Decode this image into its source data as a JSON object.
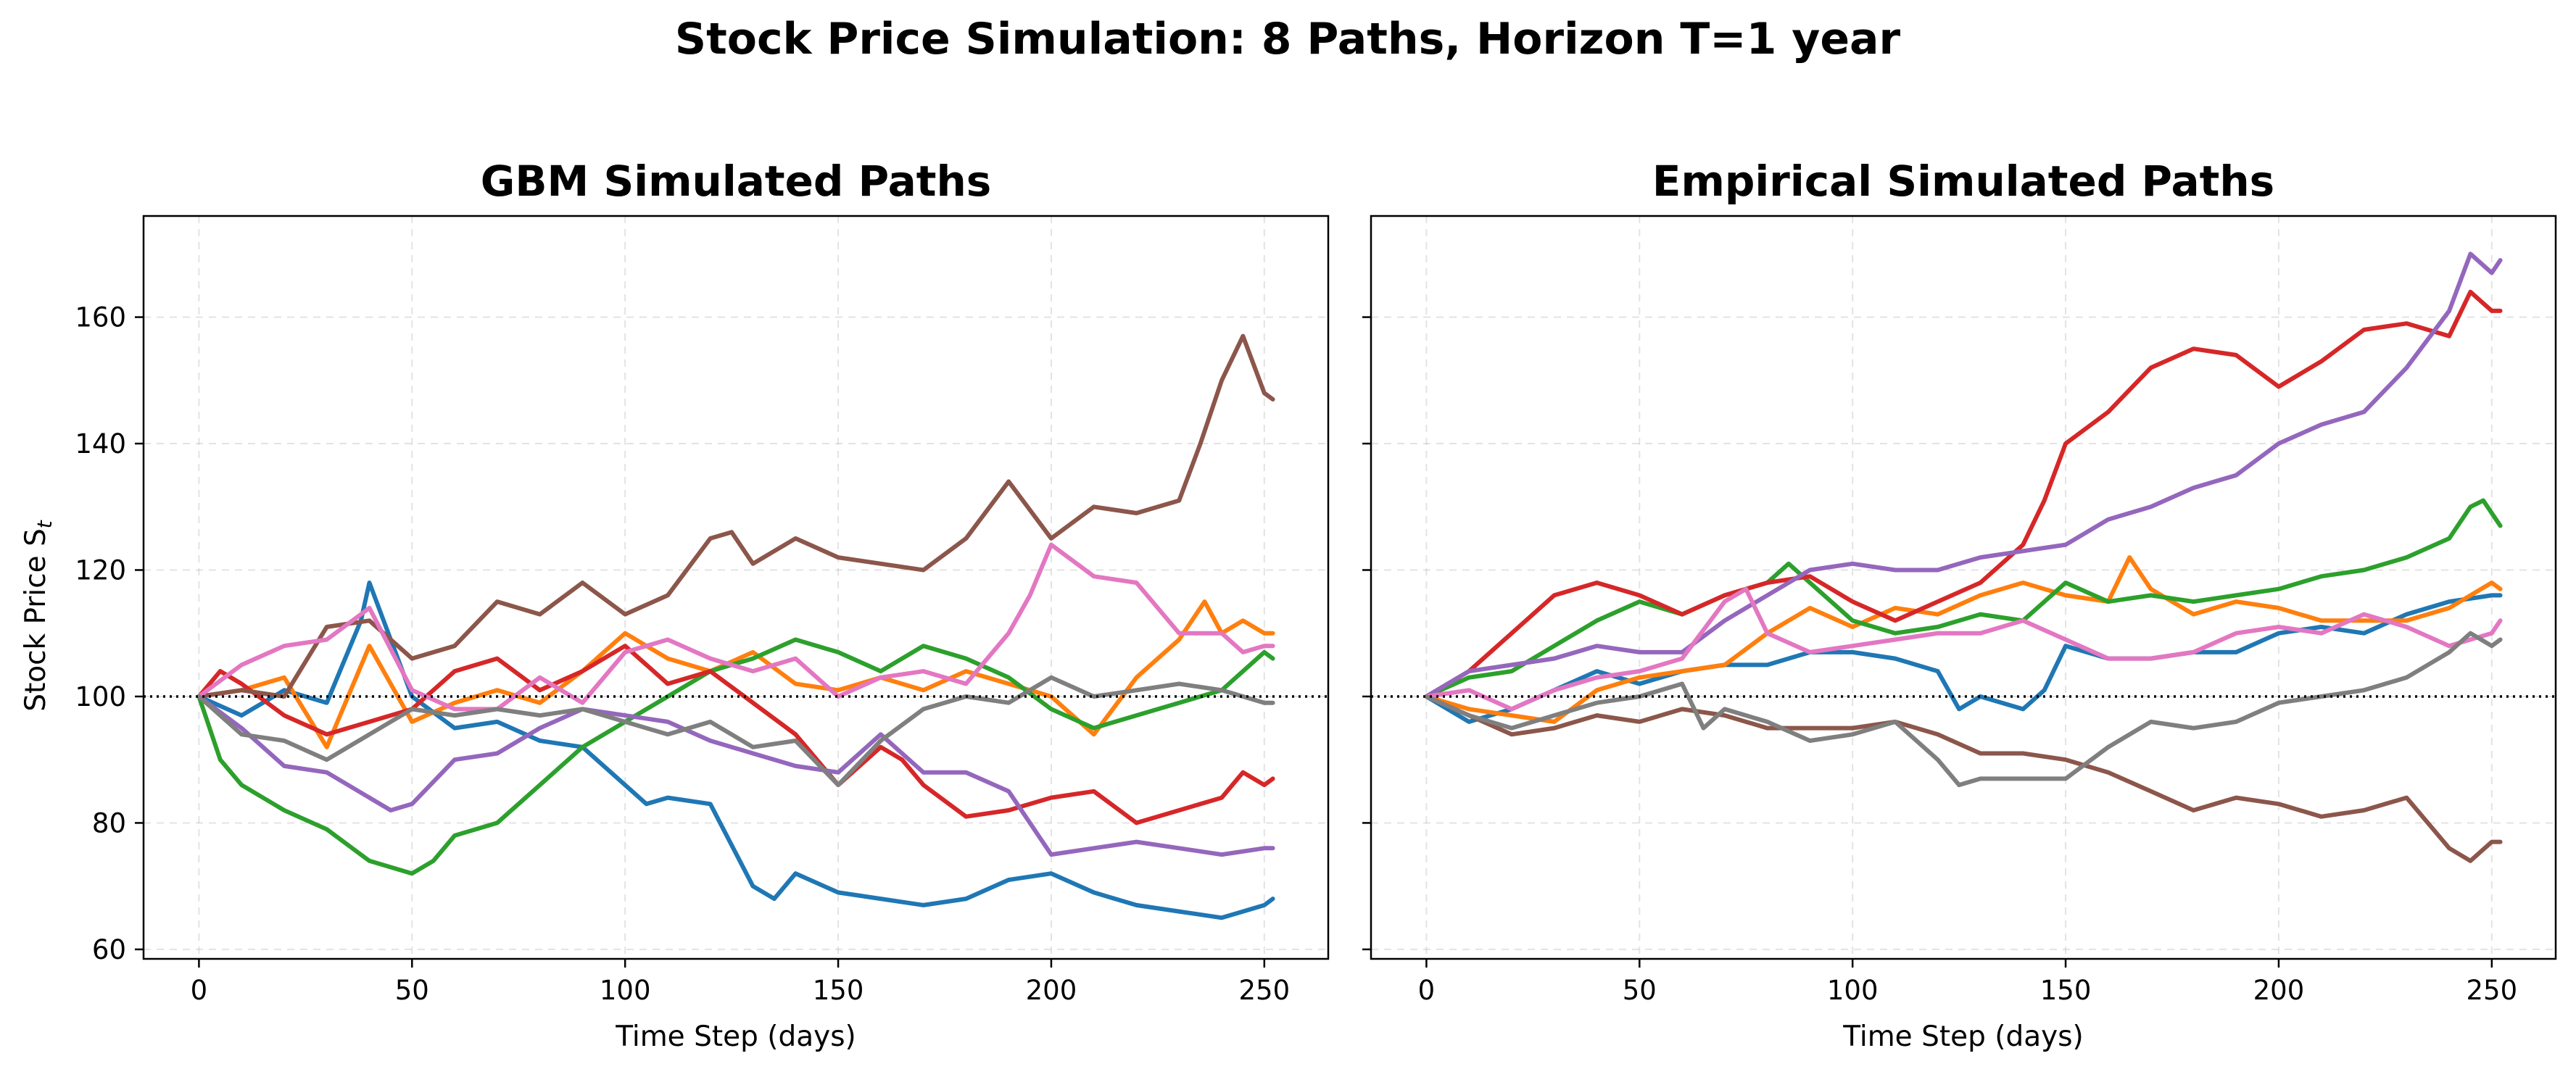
{
  "figure": {
    "title": "Stock Price Simulation: 8 Paths, Horizon T=1 year",
    "y_label_prefix": "Stock Price S",
    "y_label_sub": "t"
  },
  "chart_data": [
    {
      "type": "line",
      "title": "GBM Simulated Paths",
      "xlabel": "Time Step (days)",
      "ylabel": "Stock Price S_t",
      "xlim": [
        -13,
        265
      ],
      "ylim": [
        58.5,
        176
      ],
      "xticks": [
        0,
        50,
        100,
        150,
        200,
        250
      ],
      "yticks": [
        60,
        80,
        100,
        120,
        140,
        160
      ],
      "grid": true,
      "reference_line": {
        "y": 100,
        "style": "dotted",
        "color": "#000000"
      },
      "series": [
        {
          "color": "#1f77b4",
          "x": [
            0,
            10,
            20,
            30,
            38,
            40,
            50,
            60,
            70,
            80,
            90,
            100,
            105,
            110,
            120,
            130,
            135,
            140,
            150,
            160,
            170,
            180,
            190,
            200,
            210,
            220,
            230,
            240,
            245,
            250,
            252
          ],
          "y": [
            100,
            97,
            101,
            99,
            112,
            118,
            100,
            95,
            96,
            93,
            92,
            86,
            83,
            84,
            83,
            70,
            68,
            72,
            69,
            68,
            67,
            68,
            71,
            72,
            69,
            67,
            66,
            65,
            66,
            67,
            68
          ]
        },
        {
          "color": "#ff7f0e",
          "x": [
            0,
            10,
            20,
            30,
            40,
            50,
            60,
            70,
            80,
            90,
            100,
            110,
            120,
            130,
            140,
            150,
            160,
            170,
            180,
            190,
            200,
            210,
            220,
            230,
            236,
            240,
            245,
            250,
            252
          ],
          "y": [
            100,
            101,
            103,
            92,
            108,
            96,
            99,
            101,
            99,
            104,
            110,
            106,
            104,
            107,
            102,
            101,
            103,
            101,
            104,
            102,
            100,
            94,
            103,
            109,
            115,
            110,
            112,
            110,
            110
          ]
        },
        {
          "color": "#2ca02c",
          "x": [
            0,
            5,
            10,
            20,
            30,
            40,
            50,
            55,
            60,
            70,
            80,
            90,
            100,
            110,
            120,
            130,
            140,
            150,
            160,
            170,
            180,
            190,
            200,
            210,
            220,
            230,
            240,
            245,
            250,
            252
          ],
          "y": [
            100,
            90,
            86,
            82,
            79,
            74,
            72,
            74,
            78,
            80,
            86,
            92,
            96,
            100,
            104,
            106,
            109,
            107,
            104,
            108,
            106,
            103,
            98,
            95,
            97,
            99,
            101,
            104,
            107,
            106
          ]
        },
        {
          "color": "#d62728",
          "x": [
            0,
            5,
            10,
            20,
            30,
            40,
            50,
            60,
            70,
            80,
            90,
            100,
            110,
            120,
            130,
            140,
            150,
            160,
            165,
            170,
            180,
            190,
            200,
            210,
            220,
            230,
            240,
            245,
            250,
            252
          ],
          "y": [
            100,
            104,
            102,
            97,
            94,
            96,
            98,
            104,
            106,
            101,
            104,
            108,
            102,
            104,
            99,
            94,
            86,
            92,
            90,
            86,
            81,
            82,
            84,
            85,
            80,
            82,
            84,
            88,
            86,
            87
          ]
        },
        {
          "color": "#9467bd",
          "x": [
            0,
            10,
            20,
            30,
            40,
            45,
            50,
            60,
            70,
            80,
            90,
            100,
            110,
            120,
            130,
            140,
            150,
            160,
            170,
            180,
            190,
            200,
            210,
            220,
            230,
            240,
            250,
            252
          ],
          "y": [
            100,
            95,
            89,
            88,
            84,
            82,
            83,
            90,
            91,
            95,
            98,
            97,
            96,
            93,
            91,
            89,
            88,
            94,
            88,
            88,
            85,
            75,
            76,
            77,
            76,
            75,
            76,
            76
          ]
        },
        {
          "color": "#8c564b",
          "x": [
            0,
            10,
            20,
            30,
            40,
            50,
            60,
            70,
            80,
            90,
            100,
            110,
            120,
            125,
            130,
            140,
            150,
            160,
            170,
            180,
            190,
            200,
            210,
            220,
            230,
            235,
            240,
            245,
            250,
            252
          ],
          "y": [
            100,
            101,
            100,
            111,
            112,
            106,
            108,
            115,
            113,
            118,
            113,
            116,
            125,
            126,
            121,
            125,
            122,
            121,
            120,
            125,
            134,
            125,
            130,
            129,
            131,
            140,
            150,
            157,
            148,
            147
          ]
        },
        {
          "color": "#e377c2",
          "x": [
            0,
            10,
            20,
            30,
            40,
            50,
            60,
            70,
            80,
            90,
            100,
            110,
            120,
            130,
            140,
            150,
            160,
            170,
            180,
            190,
            195,
            200,
            210,
            220,
            230,
            240,
            245,
            250,
            252
          ],
          "y": [
            100,
            105,
            108,
            109,
            114,
            101,
            98,
            98,
            103,
            99,
            107,
            109,
            106,
            104,
            106,
            100,
            103,
            104,
            102,
            110,
            116,
            124,
            119,
            118,
            110,
            110,
            107,
            108,
            108
          ]
        },
        {
          "color": "#7f7f7f",
          "x": [
            0,
            10,
            20,
            30,
            40,
            50,
            60,
            70,
            80,
            90,
            100,
            110,
            120,
            130,
            140,
            150,
            160,
            170,
            180,
            190,
            200,
            210,
            220,
            230,
            240,
            250,
            252
          ],
          "y": [
            100,
            94,
            93,
            90,
            94,
            98,
            97,
            98,
            97,
            98,
            96,
            94,
            96,
            92,
            93,
            86,
            93,
            98,
            100,
            99,
            103,
            100,
            101,
            102,
            101,
            99,
            99
          ]
        }
      ]
    },
    {
      "type": "line",
      "title": "Empirical Simulated Paths",
      "xlabel": "Time Step (days)",
      "ylabel": "",
      "xlim": [
        -13,
        265
      ],
      "ylim": [
        58.5,
        176
      ],
      "xticks": [
        0,
        50,
        100,
        150,
        200,
        250
      ],
      "yticks": [
        60,
        80,
        100,
        120,
        140,
        160
      ],
      "grid": true,
      "reference_line": {
        "y": 100,
        "style": "dotted",
        "color": "#000000"
      },
      "series": [
        {
          "color": "#1f77b4",
          "x": [
            0,
            10,
            20,
            30,
            40,
            50,
            60,
            70,
            80,
            90,
            100,
            110,
            120,
            125,
            130,
            140,
            145,
            150,
            160,
            170,
            180,
            190,
            200,
            210,
            220,
            230,
            240,
            250,
            252
          ],
          "y": [
            100,
            96,
            98,
            101,
            104,
            102,
            104,
            105,
            105,
            107,
            107,
            106,
            104,
            98,
            100,
            98,
            101,
            108,
            106,
            106,
            107,
            107,
            110,
            111,
            110,
            113,
            115,
            116,
            116
          ]
        },
        {
          "color": "#ff7f0e",
          "x": [
            0,
            10,
            20,
            30,
            40,
            50,
            60,
            70,
            80,
            90,
            100,
            110,
            120,
            130,
            140,
            150,
            160,
            165,
            170,
            180,
            190,
            200,
            210,
            220,
            230,
            240,
            250,
            252
          ],
          "y": [
            100,
            98,
            97,
            96,
            101,
            103,
            104,
            105,
            110,
            114,
            111,
            114,
            113,
            116,
            118,
            116,
            115,
            122,
            117,
            113,
            115,
            114,
            112,
            112,
            112,
            114,
            118,
            117
          ]
        },
        {
          "color": "#2ca02c",
          "x": [
            0,
            10,
            20,
            30,
            40,
            50,
            60,
            70,
            80,
            85,
            90,
            100,
            110,
            120,
            130,
            140,
            150,
            160,
            170,
            180,
            190,
            200,
            210,
            220,
            230,
            240,
            245,
            248,
            252
          ],
          "y": [
            100,
            103,
            104,
            108,
            112,
            115,
            113,
            116,
            118,
            121,
            118,
            112,
            110,
            111,
            113,
            112,
            118,
            115,
            116,
            115,
            116,
            117,
            119,
            120,
            122,
            125,
            130,
            131,
            127
          ]
        },
        {
          "color": "#d62728",
          "x": [
            0,
            10,
            20,
            30,
            40,
            50,
            60,
            70,
            80,
            90,
            100,
            110,
            120,
            130,
            140,
            145,
            150,
            160,
            170,
            180,
            190,
            200,
            210,
            220,
            230,
            240,
            245,
            250,
            252
          ],
          "y": [
            100,
            104,
            110,
            116,
            118,
            116,
            113,
            116,
            118,
            119,
            115,
            112,
            115,
            118,
            124,
            131,
            140,
            145,
            152,
            155,
            154,
            149,
            153,
            158,
            159,
            157,
            164,
            161,
            161
          ]
        },
        {
          "color": "#9467bd",
          "x": [
            0,
            10,
            20,
            30,
            40,
            50,
            60,
            70,
            80,
            90,
            100,
            110,
            120,
            130,
            140,
            150,
            160,
            170,
            180,
            190,
            200,
            210,
            220,
            230,
            240,
            245,
            250,
            252
          ],
          "y": [
            100,
            104,
            105,
            106,
            108,
            107,
            107,
            112,
            116,
            120,
            121,
            120,
            120,
            122,
            123,
            124,
            128,
            130,
            133,
            135,
            140,
            143,
            145,
            152,
            161,
            170,
            167,
            169
          ]
        },
        {
          "color": "#8c564b",
          "x": [
            0,
            10,
            20,
            30,
            40,
            50,
            60,
            70,
            80,
            90,
            100,
            110,
            120,
            130,
            140,
            150,
            160,
            170,
            180,
            190,
            200,
            210,
            220,
            230,
            235,
            240,
            245,
            250,
            252
          ],
          "y": [
            100,
            97,
            94,
            95,
            97,
            96,
            98,
            97,
            95,
            95,
            95,
            96,
            94,
            91,
            91,
            90,
            88,
            85,
            82,
            84,
            83,
            81,
            82,
            84,
            80,
            76,
            74,
            77,
            77
          ]
        },
        {
          "color": "#e377c2",
          "x": [
            0,
            10,
            20,
            30,
            40,
            50,
            60,
            70,
            75,
            80,
            90,
            100,
            110,
            120,
            130,
            140,
            150,
            160,
            170,
            180,
            190,
            200,
            210,
            220,
            230,
            240,
            250,
            252
          ],
          "y": [
            100,
            101,
            98,
            101,
            103,
            104,
            106,
            115,
            117,
            110,
            107,
            108,
            109,
            110,
            110,
            112,
            109,
            106,
            106,
            107,
            110,
            111,
            110,
            113,
            111,
            108,
            110,
            112
          ]
        },
        {
          "color": "#7f7f7f",
          "x": [
            0,
            10,
            20,
            30,
            40,
            50,
            60,
            65,
            70,
            80,
            90,
            100,
            110,
            120,
            125,
            130,
            140,
            150,
            160,
            170,
            180,
            190,
            200,
            210,
            220,
            230,
            240,
            245,
            250,
            252
          ],
          "y": [
            100,
            97,
            95,
            97,
            99,
            100,
            102,
            95,
            98,
            96,
            93,
            94,
            96,
            90,
            86,
            87,
            87,
            87,
            92,
            96,
            95,
            96,
            99,
            100,
            101,
            103,
            107,
            110,
            108,
            109
          ]
        }
      ]
    }
  ]
}
